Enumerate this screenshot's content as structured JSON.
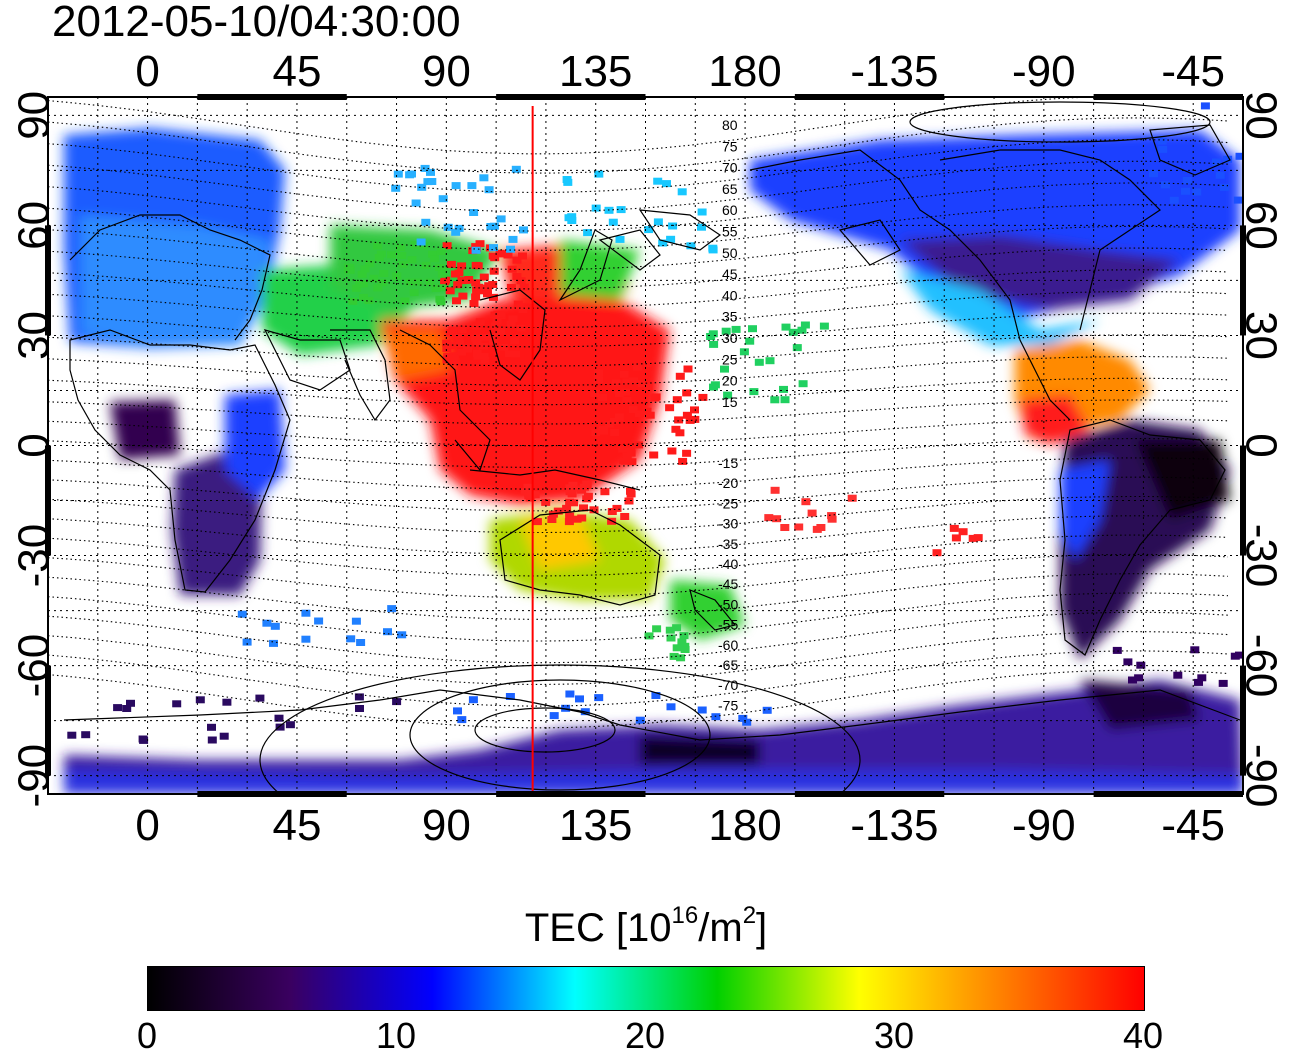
{
  "timestamp": "2012-05-10/04:30:00",
  "colorbar": {
    "title_main": "TEC  [10",
    "title_exp1": "16",
    "title_mid": "/m",
    "title_exp2": "2",
    "title_end": "]",
    "ticks": [
      "0",
      "10",
      "20",
      "30",
      "40"
    ],
    "range": [
      0,
      40
    ],
    "gradient": [
      "#000000",
      "#3a0060",
      "#0000ff",
      "#00ffff",
      "#00d000",
      "#ffff00",
      "#ff8000",
      "#ff0000"
    ]
  },
  "map": {
    "x_tick_labels": [
      "0",
      "45",
      "90",
      "135",
      "180",
      "-135",
      "-90",
      "-45"
    ],
    "y_tick_labels": [
      "90",
      "60",
      "30",
      "0",
      "-30",
      "-60",
      "-90"
    ],
    "marker_longitude": 116,
    "marker_color": "#ff0000",
    "lon_range": [
      -30,
      330
    ],
    "lat_range": [
      -95,
      95
    ],
    "contour_labels_north": [
      "80",
      "75",
      "70",
      "65",
      "60",
      "55",
      "50",
      "45",
      "40",
      "35",
      "30",
      "25",
      "20",
      "15"
    ],
    "contour_labels_south": [
      "-15",
      "-20",
      "-25",
      "-30",
      "-35",
      "-40",
      "-45",
      "-50",
      "-55",
      "-60",
      "-65",
      "-70",
      "-75"
    ]
  }
}
